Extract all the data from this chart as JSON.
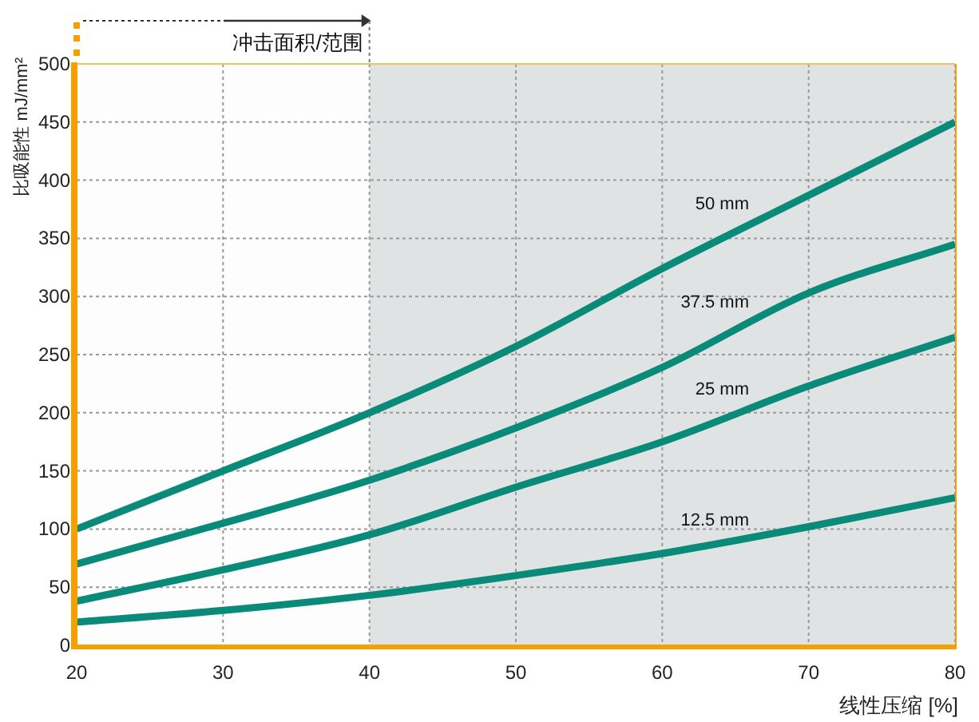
{
  "chart_data": {
    "type": "line",
    "xlabel": "线性压缩 [%]",
    "ylabel": "比吸能性 mJ/mm²",
    "x": [
      20,
      30,
      40,
      50,
      60,
      70,
      80
    ],
    "series": [
      {
        "name": "50 mm",
        "color": "#0a8a78",
        "values": [
          100,
          150,
          200,
          257,
          324,
          387,
          450
        ]
      },
      {
        "name": "37.5 mm",
        "color": "#0a8a78",
        "values": [
          70,
          105,
          142,
          187,
          239,
          303,
          345
        ]
      },
      {
        "name": "25 mm",
        "color": "#0a8a78",
        "values": [
          38,
          65,
          95,
          136,
          175,
          223,
          265
        ]
      },
      {
        "name": "12.5 mm",
        "color": "#0a8a78",
        "values": [
          20,
          30,
          43,
          60,
          79,
          102,
          127
        ]
      }
    ],
    "xlim": [
      20,
      80
    ],
    "ylim": [
      0,
      500
    ],
    "xticks": [
      20,
      30,
      40,
      50,
      60,
      70,
      80
    ],
    "yticks": [
      0,
      50,
      100,
      150,
      200,
      250,
      300,
      350,
      400,
      450,
      500
    ],
    "bands": [
      {
        "axis": "x",
        "from": 40,
        "to": 80,
        "color": "#e0e3e4"
      }
    ],
    "annotations": [
      "冲击面积/范围"
    ],
    "grid": true
  }
}
